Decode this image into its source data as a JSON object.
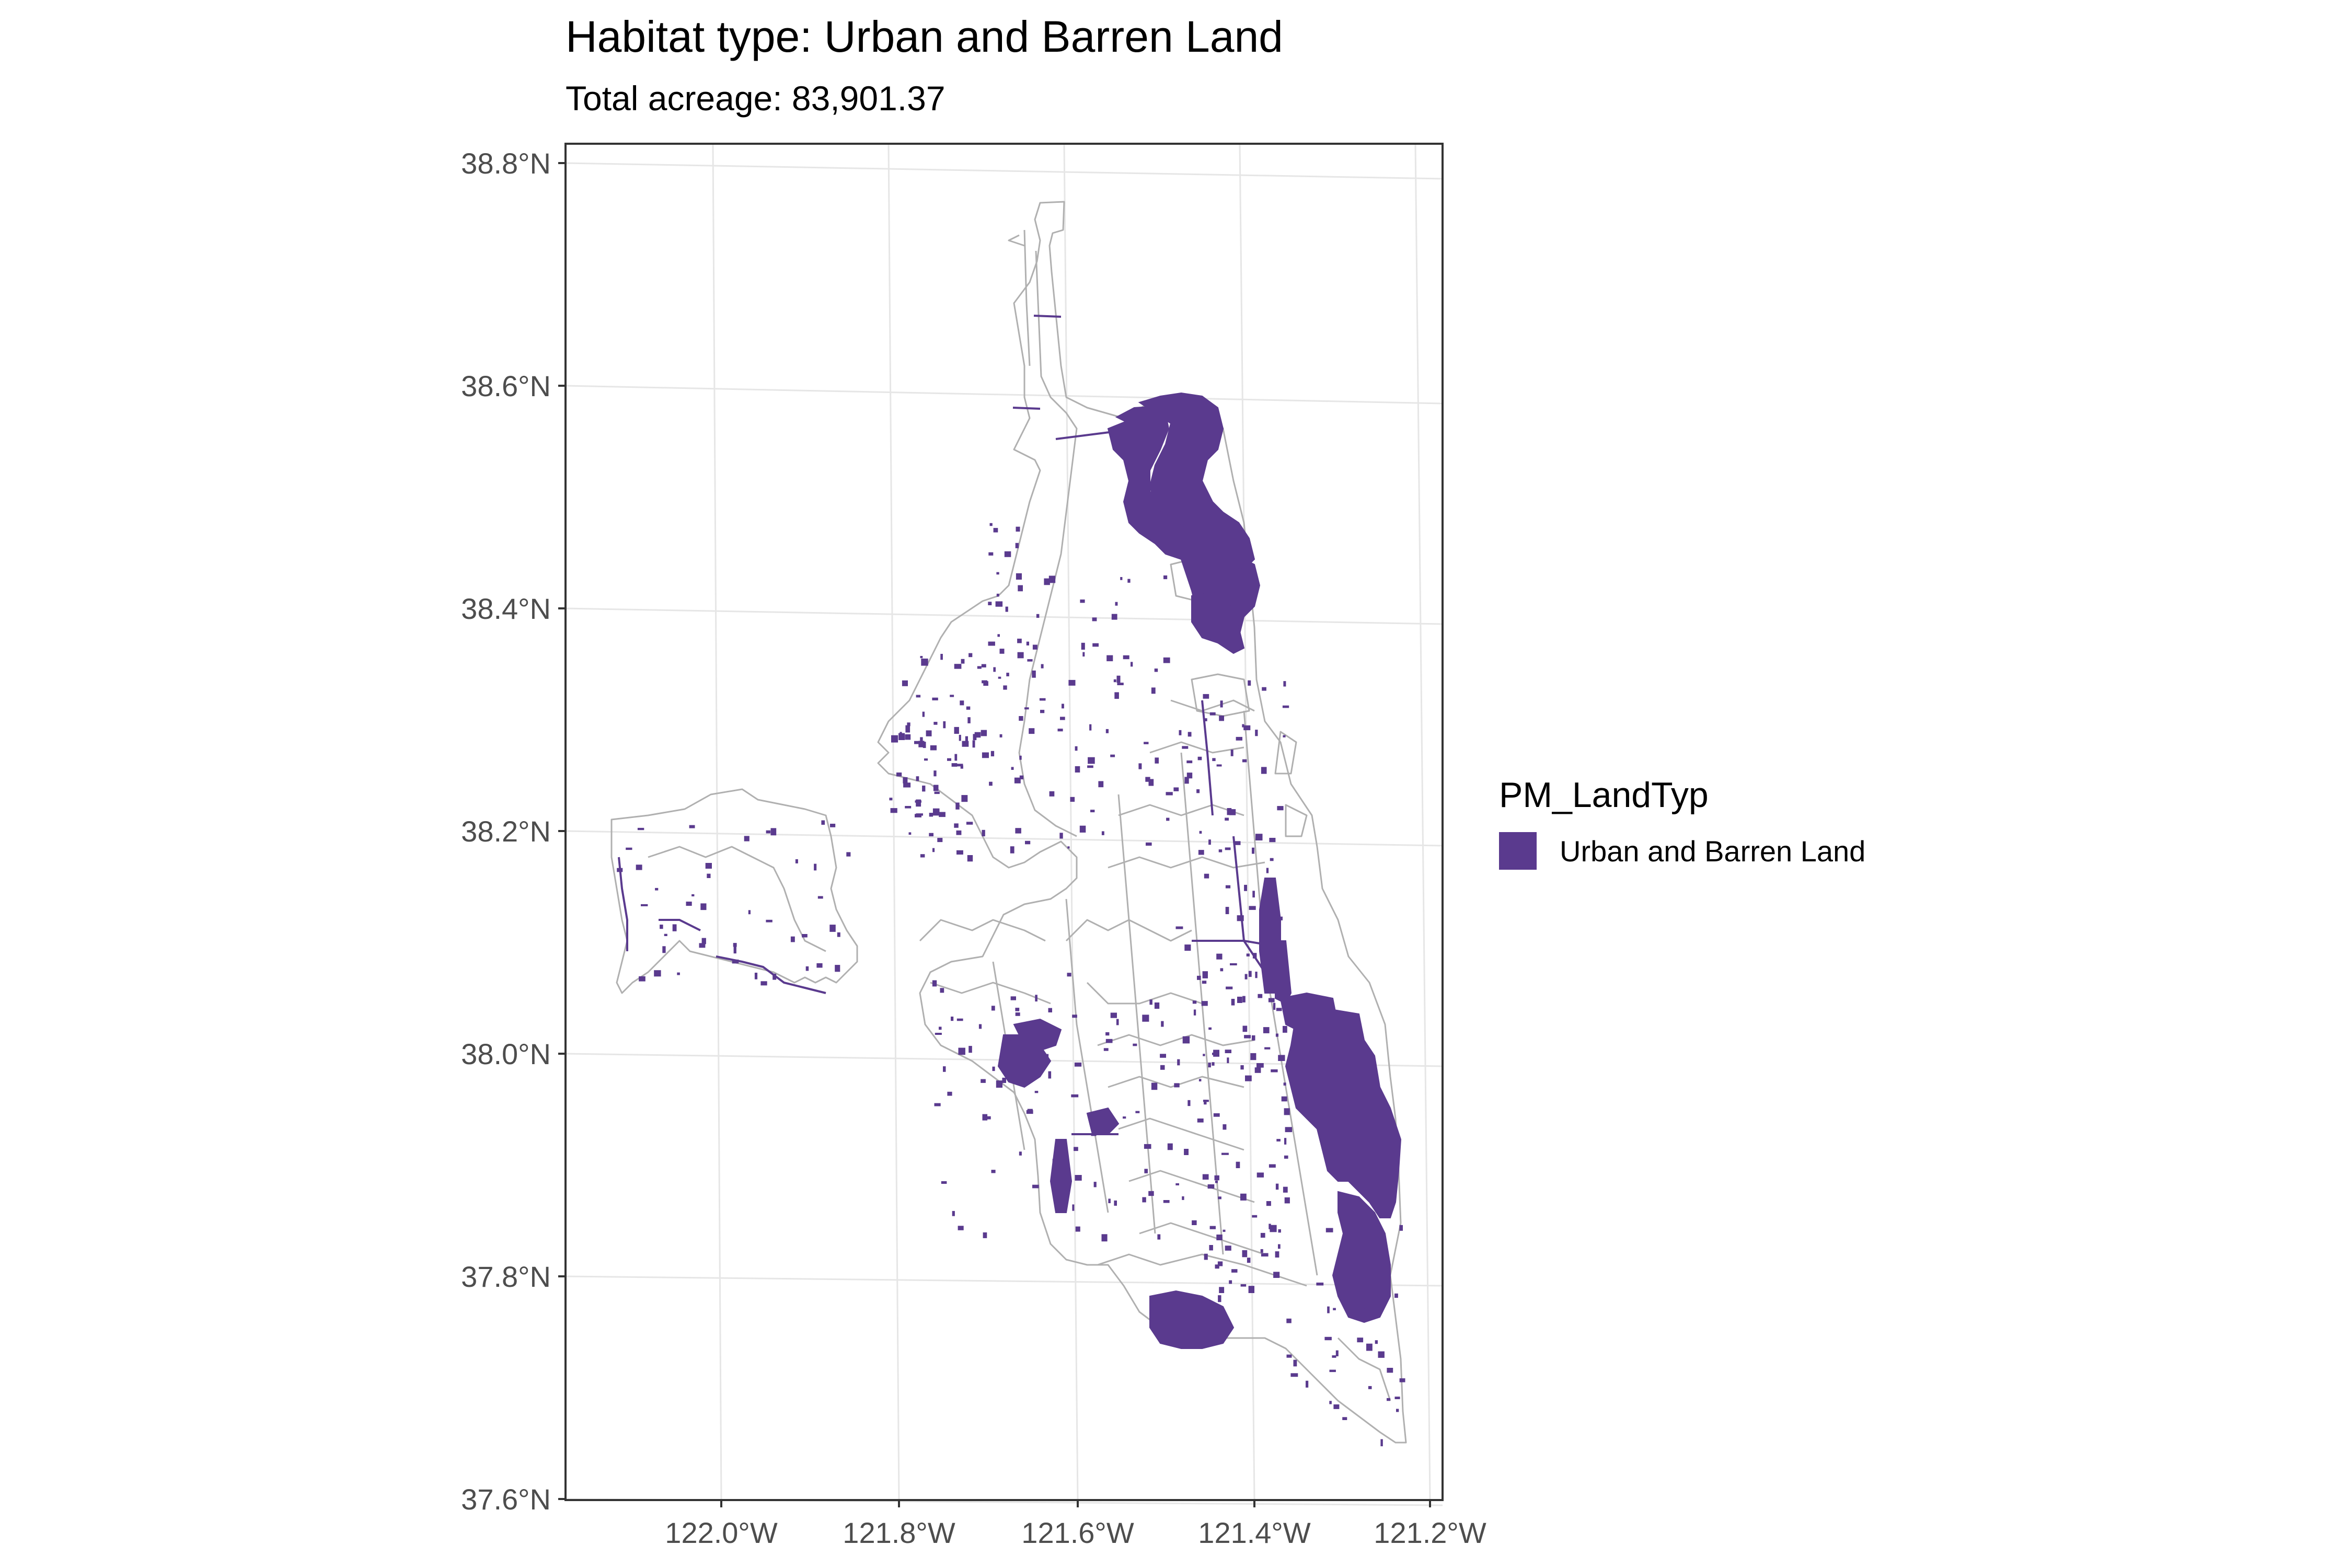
{
  "map": {
    "title": "Habitat type: Urban and Barren Land",
    "subtitle": "Total acreage: 83,901.37",
    "legend": {
      "title": "PM_LandTyp",
      "items": [
        {
          "label": "Urban and Barren Land",
          "color": "#5a3a8e"
        }
      ]
    },
    "y_ticks": [
      "38.8°N",
      "38.6°N",
      "38.4°N",
      "38.2°N",
      "38.0°N",
      "37.8°N",
      "37.6°N"
    ],
    "x_ticks": [
      "122.0°W",
      "121.8°W",
      "121.6°W",
      "121.4°W",
      "121.2°W"
    ],
    "colors": {
      "fill": "#5a3a8e",
      "boundary": "#b0b0b0",
      "grid": "#e6e6e6",
      "frame": "#333333"
    }
  }
}
